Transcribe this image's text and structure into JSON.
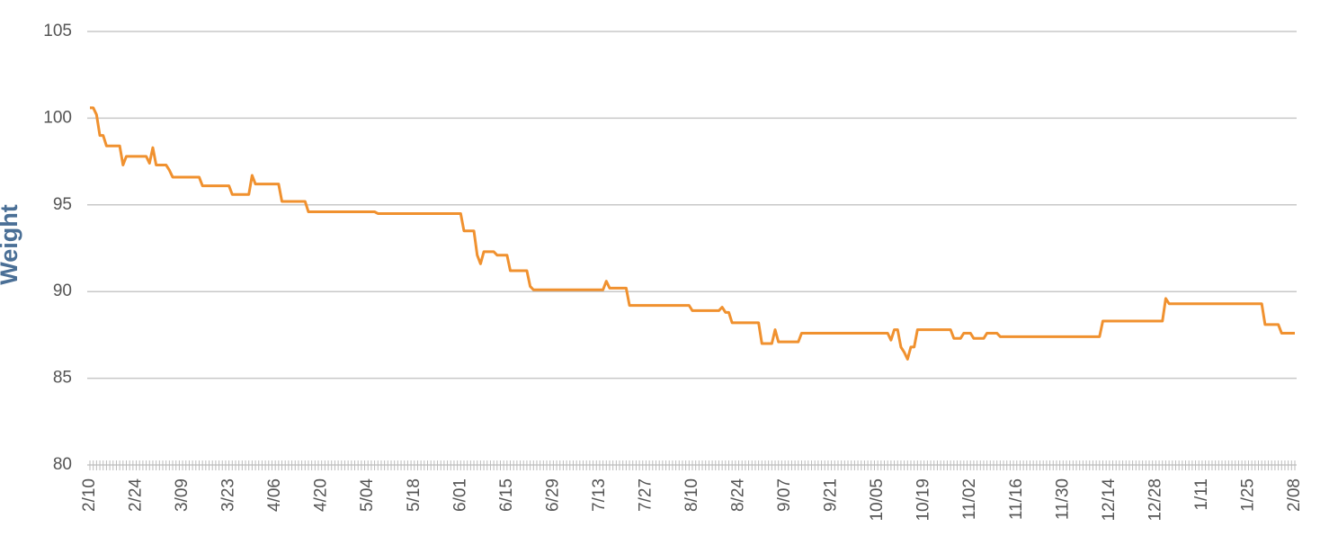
{
  "chart_data": {
    "type": "line",
    "y_label": "Weight",
    "categories": [
      "2/10",
      null,
      null,
      null,
      null,
      null,
      null,
      null,
      null,
      null,
      null,
      null,
      null,
      null,
      "2/24",
      null,
      null,
      null,
      null,
      null,
      null,
      null,
      null,
      null,
      null,
      null,
      null,
      null,
      "3/09",
      null,
      null,
      null,
      null,
      null,
      null,
      null,
      null,
      null,
      null,
      null,
      null,
      null,
      "3/23",
      null,
      null,
      null,
      null,
      null,
      null,
      null,
      null,
      null,
      null,
      null,
      null,
      null,
      "4/06",
      null,
      null,
      null,
      null,
      null,
      null,
      null,
      null,
      null,
      null,
      null,
      null,
      null,
      "4/20",
      null,
      null,
      null,
      null,
      null,
      null,
      null,
      null,
      null,
      null,
      null,
      null,
      null,
      "5/04",
      null,
      null,
      null,
      null,
      null,
      null,
      null,
      null,
      null,
      null,
      null,
      null,
      null,
      "5/18",
      null,
      null,
      null,
      null,
      null,
      null,
      null,
      null,
      null,
      null,
      null,
      null,
      null,
      "6/01",
      null,
      null,
      null,
      null,
      null,
      null,
      null,
      null,
      null,
      null,
      null,
      null,
      null,
      "6/15",
      null,
      null,
      null,
      null,
      null,
      null,
      null,
      null,
      null,
      null,
      null,
      null,
      null,
      "6/29",
      null,
      null,
      null,
      null,
      null,
      null,
      null,
      null,
      null,
      null,
      null,
      null,
      null,
      "7/13",
      null,
      null,
      null,
      null,
      null,
      null,
      null,
      null,
      null,
      null,
      null,
      null,
      null,
      "7/27",
      null,
      null,
      null,
      null,
      null,
      null,
      null,
      null,
      null,
      null,
      null,
      null,
      null,
      "8/10",
      null,
      null,
      null,
      null,
      null,
      null,
      null,
      null,
      null,
      null,
      null,
      null,
      null,
      "8/24",
      null,
      null,
      null,
      null,
      null,
      null,
      null,
      null,
      null,
      null,
      null,
      null,
      null,
      "9/07",
      null,
      null,
      null,
      null,
      null,
      null,
      null,
      null,
      null,
      null,
      null,
      null,
      null,
      "9/21",
      null,
      null,
      null,
      null,
      null,
      null,
      null,
      null,
      null,
      null,
      null,
      null,
      null,
      "10/05",
      null,
      null,
      null,
      null,
      null,
      null,
      null,
      null,
      null,
      null,
      null,
      null,
      null,
      "10/19",
      null,
      null,
      null,
      null,
      null,
      null,
      null,
      null,
      null,
      null,
      null,
      null,
      null,
      "11/02",
      null,
      null,
      null,
      null,
      null,
      null,
      null,
      null,
      null,
      null,
      null,
      null,
      null,
      "11/16",
      null,
      null,
      null,
      null,
      null,
      null,
      null,
      null,
      null,
      null,
      null,
      null,
      null,
      "11/30",
      null,
      null,
      null,
      null,
      null,
      null,
      null,
      null,
      null,
      null,
      null,
      null,
      null,
      "12/14",
      null,
      null,
      null,
      null,
      null,
      null,
      null,
      null,
      null,
      null,
      null,
      null,
      null,
      "12/28",
      null,
      null,
      null,
      null,
      null,
      null,
      null,
      null,
      null,
      null,
      null,
      null,
      null,
      "1/11",
      null,
      null,
      null,
      null,
      null,
      null,
      null,
      null,
      null,
      null,
      null,
      null,
      null,
      "1/25",
      null,
      null,
      null,
      null,
      null,
      null,
      null,
      null,
      null,
      null,
      null,
      null,
      null,
      "2/08"
    ],
    "series": [
      {
        "name": "Weight",
        "color": "#f0912f",
        "values": [
          100.6,
          100.6,
          100.2,
          99.0,
          99.0,
          98.4,
          98.4,
          98.4,
          98.4,
          98.4,
          97.3,
          97.8,
          97.8,
          97.8,
          97.8,
          97.8,
          97.8,
          97.8,
          97.4,
          98.3,
          97.3,
          97.3,
          97.3,
          97.3,
          97.0,
          96.6,
          96.6,
          96.6,
          96.6,
          96.6,
          96.6,
          96.6,
          96.6,
          96.6,
          96.1,
          96.1,
          96.1,
          96.1,
          96.1,
          96.1,
          96.1,
          96.1,
          96.1,
          95.6,
          95.6,
          95.6,
          95.6,
          95.6,
          95.6,
          96.7,
          96.2,
          96.2,
          96.2,
          96.2,
          96.2,
          96.2,
          96.2,
          96.2,
          95.2,
          95.2,
          95.2,
          95.2,
          95.2,
          95.2,
          95.2,
          95.2,
          94.6,
          94.6,
          94.6,
          94.6,
          94.6,
          94.6,
          94.6,
          94.6,
          94.6,
          94.6,
          94.6,
          94.6,
          94.6,
          94.6,
          94.6,
          94.6,
          94.6,
          94.6,
          94.6,
          94.6,
          94.6,
          94.5,
          94.5,
          94.5,
          94.5,
          94.5,
          94.5,
          94.5,
          94.5,
          94.5,
          94.5,
          94.5,
          94.5,
          94.5,
          94.5,
          94.5,
          94.5,
          94.5,
          94.5,
          94.5,
          94.5,
          94.5,
          94.5,
          94.5,
          94.5,
          94.5,
          94.5,
          93.5,
          93.5,
          93.5,
          93.5,
          92.1,
          91.6,
          92.3,
          92.3,
          92.3,
          92.3,
          92.1,
          92.1,
          92.1,
          92.1,
          91.2,
          91.2,
          91.2,
          91.2,
          91.2,
          91.2,
          90.3,
          90.1,
          90.1,
          90.1,
          90.1,
          90.1,
          90.1,
          90.1,
          90.1,
          90.1,
          90.1,
          90.1,
          90.1,
          90.1,
          90.1,
          90.1,
          90.1,
          90.1,
          90.1,
          90.1,
          90.1,
          90.1,
          90.1,
          90.6,
          90.2,
          90.2,
          90.2,
          90.2,
          90.2,
          90.2,
          89.2,
          89.2,
          89.2,
          89.2,
          89.2,
          89.2,
          89.2,
          89.2,
          89.2,
          89.2,
          89.2,
          89.2,
          89.2,
          89.2,
          89.2,
          89.2,
          89.2,
          89.2,
          89.2,
          88.9,
          88.9,
          88.9,
          88.9,
          88.9,
          88.9,
          88.9,
          88.9,
          88.9,
          89.1,
          88.8,
          88.8,
          88.2,
          88.2,
          88.2,
          88.2,
          88.2,
          88.2,
          88.2,
          88.2,
          88.2,
          87.0,
          87.0,
          87.0,
          87.0,
          87.8,
          87.1,
          87.1,
          87.1,
          87.1,
          87.1,
          87.1,
          87.1,
          87.6,
          87.6,
          87.6,
          87.6,
          87.6,
          87.6,
          87.6,
          87.6,
          87.6,
          87.6,
          87.6,
          87.6,
          87.6,
          87.6,
          87.6,
          87.6,
          87.6,
          87.6,
          87.6,
          87.6,
          87.6,
          87.6,
          87.6,
          87.6,
          87.6,
          87.6,
          87.6,
          87.2,
          87.8,
          87.8,
          86.8,
          86.5,
          86.1,
          86.8,
          86.8,
          87.8,
          87.8,
          87.8,
          87.8,
          87.8,
          87.8,
          87.8,
          87.8,
          87.8,
          87.8,
          87.8,
          87.3,
          87.3,
          87.3,
          87.6,
          87.6,
          87.6,
          87.3,
          87.3,
          87.3,
          87.3,
          87.6,
          87.6,
          87.6,
          87.6,
          87.4,
          87.4,
          87.4,
          87.4,
          87.4,
          87.4,
          87.4,
          87.4,
          87.4,
          87.4,
          87.4,
          87.4,
          87.4,
          87.4,
          87.4,
          87.4,
          87.4,
          87.4,
          87.4,
          87.4,
          87.4,
          87.4,
          87.4,
          87.4,
          87.4,
          87.4,
          87.4,
          87.4,
          87.4,
          87.4,
          87.4,
          88.3,
          88.3,
          88.3,
          88.3,
          88.3,
          88.3,
          88.3,
          88.3,
          88.3,
          88.3,
          88.3,
          88.3,
          88.3,
          88.3,
          88.3,
          88.3,
          88.3,
          88.3,
          88.3,
          89.6,
          89.3,
          89.3,
          89.3,
          89.3,
          89.3,
          89.3,
          89.3,
          89.3,
          89.3,
          89.3,
          89.3,
          89.3,
          89.3,
          89.3,
          89.3,
          89.3,
          89.3,
          89.3,
          89.3,
          89.3,
          89.3,
          89.3,
          89.3,
          89.3,
          89.3,
          89.3,
          89.3,
          89.3,
          89.3,
          88.1,
          88.1,
          88.1,
          88.1,
          88.1,
          87.6,
          87.6,
          87.6,
          87.6,
          87.6
        ]
      }
    ],
    "ylim": [
      80,
      105
    ],
    "yticks": [
      80,
      85,
      90,
      95,
      100,
      105
    ],
    "grid": true
  }
}
